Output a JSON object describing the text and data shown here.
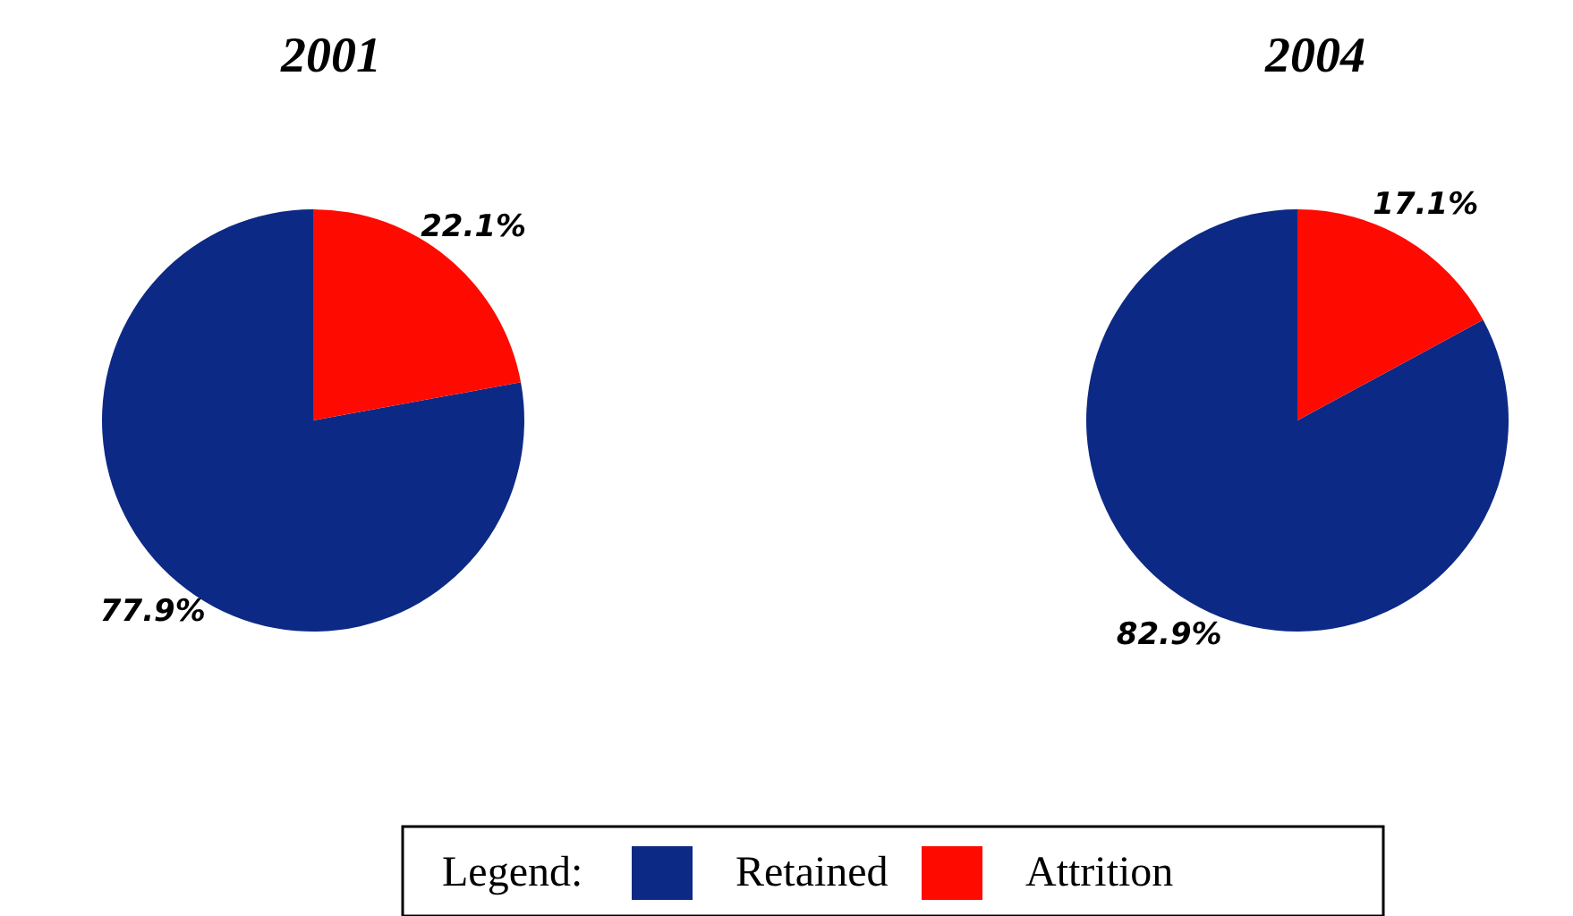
{
  "chart_data": [
    {
      "type": "pie",
      "title": "2001",
      "categories": [
        "Retained",
        "Attrition"
      ],
      "values": [
        77.9,
        22.1
      ],
      "colors": [
        "#0c2a85",
        "#ff0a00"
      ],
      "value_labels": [
        "77.9%",
        "22.1%"
      ],
      "legend": "bottom",
      "legend_title": "Legend:"
    },
    {
      "type": "pie",
      "title": "2004",
      "categories": [
        null,
        null
      ],
      "values": [
        82.9,
        17.1
      ],
      "colors": [
        "#0c2a85",
        "#ff0a00"
      ],
      "value_labels": [
        "82.9%",
        "17.1%"
      ],
      "legend": false
    }
  ]
}
